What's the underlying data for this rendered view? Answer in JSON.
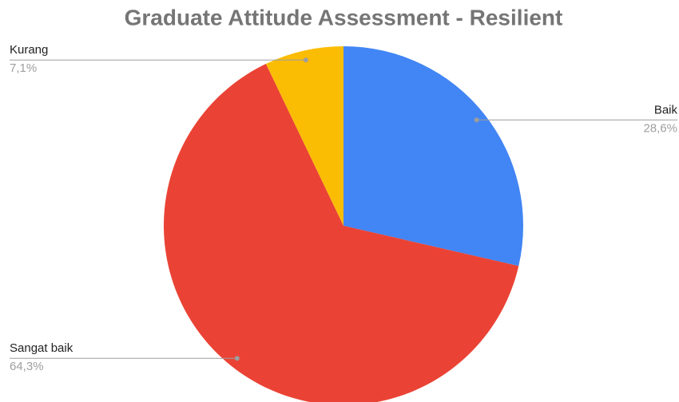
{
  "chart_data": {
    "type": "pie",
    "title": "Graduate Attitude Assessment - Resilient",
    "categories": [
      "Baik",
      "Sangat baik",
      "Kurang"
    ],
    "values": [
      28.6,
      64.3,
      7.1
    ],
    "value_labels": [
      "28,6%",
      "64,3%",
      "7,1%"
    ],
    "colors": [
      "#4285f4",
      "#ea4335",
      "#fbbc04"
    ]
  }
}
